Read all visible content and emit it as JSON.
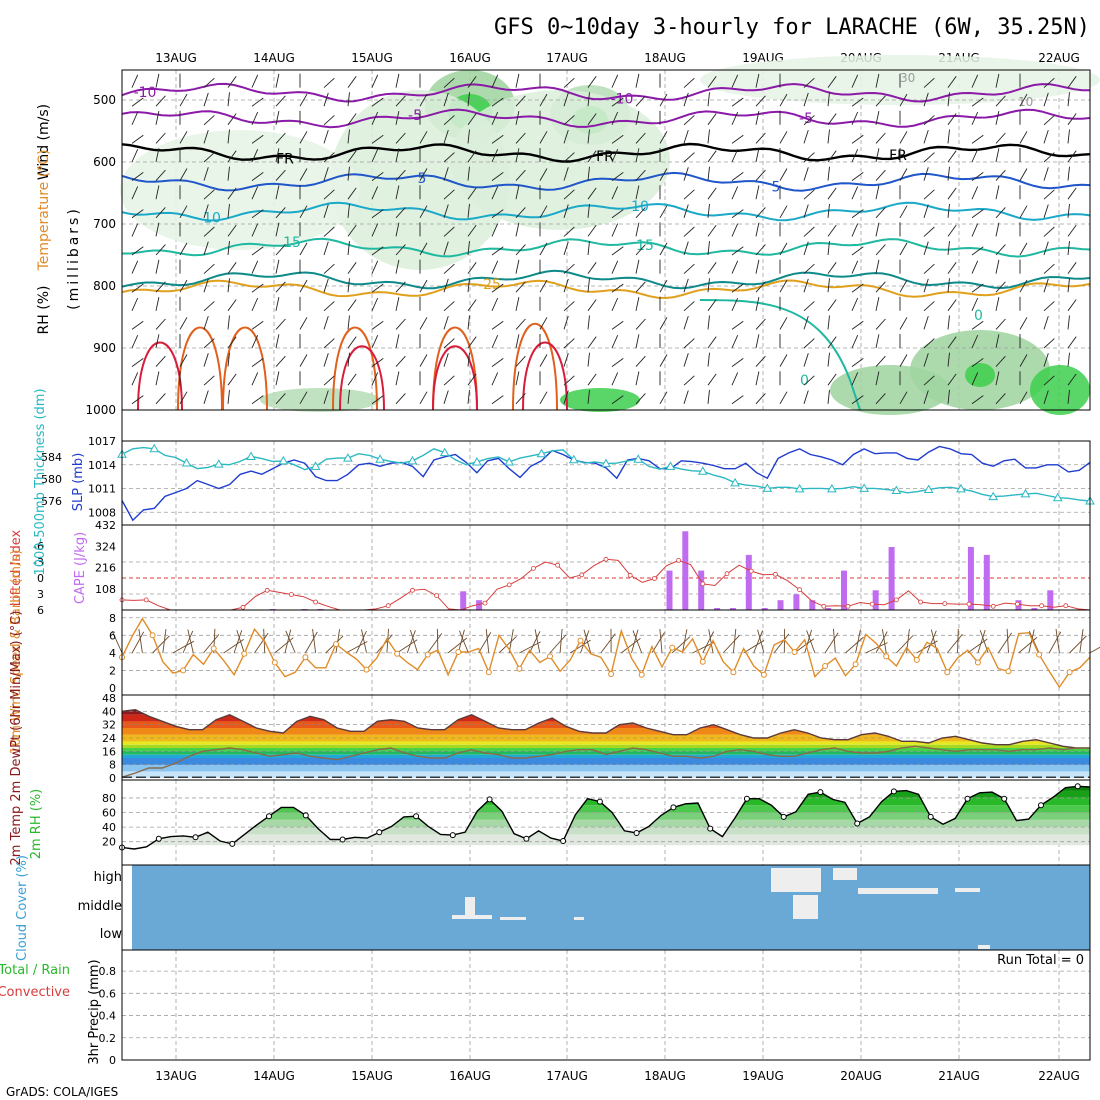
{
  "title": "GFS 0~10day 3-hourly for LARACHE (6W, 35.25N)",
  "footer": "GrADS: COLA/IGES",
  "colors": {
    "frame": "#000000",
    "grid": "#a0a0a0",
    "temperature_cold": "#8b1aa8",
    "temperature_mid": "#1f56c9",
    "temperature_cyan": "#1aa9c9",
    "temperature_teal": "#1fb8a0",
    "temperature_warm": "#e0a01c",
    "temperature_hot": "#e0601c",
    "temperature_red": "#d81c3c",
    "rh_green": "#3ccf4c",
    "slp": "#1f3ccf",
    "thickness": "#2bb8c2",
    "lifted_index": "#d83c3c",
    "cape": "#c06cf0",
    "wind": "#e08c28",
    "dewpoint": "#8a6a4a",
    "rh2m": "#2bb82b",
    "cloud_bg": "#6aa8d6",
    "cloud_fill": "#eeeeee"
  },
  "chart_data": {
    "dates": [
      "13AUG",
      "14AUG",
      "15AUG",
      "16AUG",
      "17AUG",
      "18AUG",
      "19AUG",
      "20AUG",
      "21AUG",
      "22AUG"
    ],
    "panels": [
      {
        "type": "contour",
        "name": "upper-air cross-section",
        "ylabels": [
          "Wind (m/s)",
          "Temperature (°C)",
          "RH (%)"
        ],
        "ylabel2": "(millibars)",
        "yticks": [
          "500",
          "600",
          "700",
          "800",
          "900",
          "1000"
        ],
        "contour_labels": [
          "-10",
          "-5",
          "FR",
          "5",
          "10",
          "15",
          "25",
          "0"
        ],
        "right_labels": [
          "30",
          "10"
        ]
      },
      {
        "type": "line",
        "name": "thickness-slp",
        "ylabel_left": "1000-500mb Thickness (dm)",
        "ylabel_right": "SLP (mb)",
        "yticks_left": [
          "584",
          "580",
          "576"
        ],
        "yticks_right": [
          "1017",
          "1014",
          "1011",
          "1008"
        ],
        "series": [
          {
            "name": "SLP (mb)",
            "values": [
              1009.5,
              1007,
              1008.3,
              1008.5,
              1010,
              1010.5,
              1011,
              1012,
              1011.5,
              1011,
              1011.5,
              1012.8,
              1013.2,
              1012.8,
              1013.5,
              1014.2,
              1014.6,
              1014.2,
              1012.5,
              1012,
              1012,
              1012.8,
              1014,
              1014.2,
              1013.8,
              1014.2,
              1014.3,
              1013.8,
              1012.5,
              1014.6,
              1015,
              1015.3,
              1014.3,
              1013,
              1014.5,
              1014.8,
              1013.5,
              1012.4,
              1013.8,
              1014.5,
              1015.8,
              1015.3,
              1014.6,
              1014.3,
              1014.2,
              1013.6,
              1012.3,
              1014.6,
              1014.8,
              1014.5,
              1013.5,
              1013.5,
              1014.5,
              1014.4,
              1014.2,
              1013.9,
              1013.5,
              1013.5,
              1014.2,
              1013,
              1012.3,
              1014.8,
              1015.5,
              1016,
              1015.3,
              1015,
              1014.6,
              1014,
              1015.3,
              1016,
              1015.4,
              1015.5,
              1015.5,
              1014.8,
              1014.6,
              1015.6,
              1016.3,
              1016,
              1015.4,
              1015.3,
              1014.2,
              1013.8,
              1014.5,
              1014.7,
              1013.6,
              1013.6,
              1014,
              1014,
              1013.1,
              1013.3,
              1014.3
            ]
          },
          {
            "name": "1000-500mb Thickness (dm)",
            "values": [
              584.5,
              585.5,
              585.7,
              585.5,
              584.3,
              583.9,
              582.9,
              581.9,
              582.1,
              582.7,
              582.6,
              583.2,
              584.1,
              583.7,
              583.2,
              583.3,
              582.6,
              581.7,
              582.3,
              583.6,
              583.8,
              583.8,
              584.6,
              584.3,
              583.6,
              583.2,
              582.9,
              583.3,
              584.3,
              585.5,
              584.8,
              583.5,
              582.6,
              583.1,
              583.7,
              584,
              583.1,
              583.8,
              584.2,
              584.6,
              585.1,
              585.3,
              583.5,
              582.9,
              583.1,
              582.8,
              582.9,
              583.3,
              583.6,
              582.3,
              581.8,
              582.3,
              581.8,
              581.5,
              581.4,
              580.7,
              580.2,
              579.3,
              578.9,
              578.7,
              578.3,
              578.5,
              578.5,
              578.2,
              578.3,
              578.3,
              578.2,
              578.3,
              578.6,
              578.3,
              578.3,
              578.1,
              577.9,
              577.5,
              577.7,
              578.1,
              578.4,
              578.5,
              578.2,
              577.8,
              577.2,
              576.8,
              576.9,
              577.1,
              577.3,
              577.4,
              577,
              576.6,
              576.5,
              576.2,
              576
            ]
          }
        ]
      },
      {
        "type": "line+bar",
        "name": "lifted-index-cape",
        "ylabel_left": "Lifted Index",
        "ylabel_right": "CAPE (J/kg)",
        "yticks_left": [
          "-6",
          "-3",
          "0",
          "3",
          "6"
        ],
        "yticks_right": [
          "432",
          "324",
          "216",
          "108"
        ],
        "series": [
          {
            "name": "Lifted Index",
            "values": [
              4.1,
              4.2,
              4.1,
              5.2,
              6.5,
              6.8,
              7,
              7,
              7,
              7,
              5.5,
              3.5,
              2.3,
              2.7,
              3.1,
              3.5,
              4.5,
              5.3,
              6.5,
              7.5,
              6.5,
              5.8,
              5.2,
              3.8,
              2.3,
              2.1,
              3.3,
              5.8,
              7.1,
              5.2,
              4.7,
              2.1,
              1.3,
              0.1,
              -1.8,
              -3,
              -2.4,
              0,
              -0.6,
              -2.3,
              -3.5,
              -3.3,
              -0.5,
              0.8,
              0.1,
              -2.3,
              -3.3,
              -2.5,
              1.1,
              1.4,
              -0.8,
              -2.4,
              -1.3,
              -0.6,
              -0.7,
              0.5,
              2.2,
              4.3,
              5.3,
              5.2,
              5.3,
              4.6,
              4.9,
              5,
              4.1,
              2.4,
              4.5,
              4.8,
              4.8,
              4.9,
              4.9,
              5,
              5.3,
              4.7,
              4.9,
              5.2,
              5.2,
              5.5,
              5.2,
              5.8,
              6.6
            ]
          },
          {
            "name": "CAPE (J/kg)",
            "values": [
              0,
              0,
              0,
              0,
              0,
              0,
              0,
              0,
              0,
              5,
              0,
              5,
              5,
              0,
              0,
              0,
              0,
              0,
              0,
              0,
              0,
              95,
              50,
              0,
              0,
              0,
              0,
              0,
              0,
              0,
              0,
              0,
              0,
              0,
              200,
              400,
              200,
              10,
              10,
              280,
              10,
              50,
              80,
              50,
              10,
              200,
              0,
              100,
              320,
              0,
              0,
              0,
              0,
              320,
              280,
              0,
              50,
              10,
              100,
              0,
              0
            ]
          }
        ],
        "reference_line": 0
      },
      {
        "type": "line",
        "name": "10m-wind",
        "ylabel": "10m Wind Speed & Barbs (m/s)",
        "yticks": [
          "8",
          "6",
          "4",
          "2",
          "0"
        ],
        "series": [
          {
            "name": "10m Wind Speed",
            "values": [
              3.5,
              5.9,
              7.9,
              6,
              3,
              1.7,
              2,
              3.8,
              2.7,
              4.5,
              3.1,
              1.5,
              3.9,
              6.7,
              5.3,
              2.9,
              1.3,
              1.8,
              3.5,
              2.3,
              2.3,
              5,
              4.1,
              3.3,
              2.1,
              3.4,
              5.6,
              3.9,
              2.9,
              2.1,
              3.8,
              4.3,
              1.5,
              4.1,
              4.1,
              4.5,
              1.8,
              6,
              4.4,
              2.2,
              4.3,
              2.9,
              3.6,
              1.9,
              3.2,
              5.4,
              3.9,
              3.5,
              1.6,
              6.5,
              3.4,
              1.5,
              4.7,
              2.4,
              4.6,
              4.1,
              5.6,
              3,
              5.4,
              3,
              1.8,
              4.5,
              2.5,
              1.5,
              4.9,
              5.5,
              4.1,
              5.5,
              1.3,
              2.5,
              3.4,
              1.4,
              2.7,
              6.1,
              5.1,
              3.6,
              2.5,
              4.6,
              3.2,
              5.2,
              4.5,
              1.8,
              3.4,
              4.3,
              2.9,
              4.6,
              2.2,
              1.9,
              6.2,
              6.3,
              3.8,
              1.9,
              0.1,
              1.8,
              2.3,
              3.5
            ]
          }
        ]
      },
      {
        "type": "area",
        "name": "2m-temp",
        "ylabel": "2m Temp 2m DewPt (6hr Min/Max) (°C)",
        "yticks": [
          "48",
          "40",
          "32",
          "24",
          "16",
          "8",
          "0"
        ],
        "series": [
          {
            "name": "2m Temp",
            "values": [
              40,
              41,
              37,
              34,
              31,
              29,
              29,
              35,
              38,
              34,
              30,
              28,
              27,
              34,
              37,
              35,
              30,
              28,
              28,
              34,
              35,
              34,
              30,
              29,
              29,
              35,
              38,
              34,
              30,
              29,
              29,
              33,
              36,
              31,
              28,
              27,
              27,
              32,
              33,
              30,
              28,
              26,
              26,
              30,
              32,
              29,
              26,
              24,
              24,
              27,
              29,
              27,
              24,
              23,
              23,
              26,
              27,
              25,
              22,
              22,
              21,
              24,
              25,
              23,
              21,
              20,
              20,
              22,
              23,
              21,
              19,
              18,
              18
            ]
          },
          {
            "name": "2m DewPt",
            "values": [
              0.5,
              3,
              6,
              6,
              9,
              13,
              16,
              17,
              18,
              17,
              15,
              13,
              14,
              15,
              13,
              12,
              11,
              13,
              15,
              17,
              18,
              15,
              13,
              12,
              12,
              15,
              17,
              15,
              14,
              12,
              12,
              13,
              14,
              16,
              17,
              17,
              14,
              16,
              18,
              17,
              15,
              13,
              13,
              12,
              13,
              16,
              17,
              16,
              14,
              13,
              13,
              15,
              17,
              18,
              16,
              15,
              15,
              16,
              18,
              19,
              18,
              17,
              16,
              17,
              17,
              17,
              16,
              17,
              17,
              18,
              17,
              18,
              18
            ]
          }
        ]
      },
      {
        "type": "area",
        "name": "2m-rh",
        "ylabel": "2m RH (%)",
        "yticks": [
          "80",
          "60",
          "40",
          "20"
        ],
        "series": [
          {
            "name": "2m RH",
            "values": [
              12,
              10,
              13,
              24,
              27,
              28,
              26,
              33,
              21,
              17,
              30,
              43,
              55,
              67,
              67,
              56,
              38,
              23,
              23,
              26,
              25,
              33,
              41,
              54,
              55,
              41,
              30,
              29,
              33,
              62,
              78,
              62,
              31,
              24,
              35,
              25,
              21,
              57,
              79,
              75,
              60,
              35,
              32,
              41,
              56,
              67,
              72,
              73,
              38,
              27,
              52,
              79,
              79,
              70,
              54,
              61,
              85,
              88,
              78,
              74,
              45,
              54,
              75,
              89,
              90,
              85,
              54,
              44,
              52,
              79,
              87,
              88,
              79,
              49,
              51,
              70,
              81,
              94,
              96,
              95
            ]
          }
        ]
      },
      {
        "type": "area",
        "name": "cloud-cover",
        "ylabel": "Cloud Cover (%)",
        "yticks": [
          "high",
          "middle",
          "low"
        ]
      },
      {
        "type": "bar",
        "name": "3hr-precip",
        "ylabel_a": "Total / Rain",
        "ylabel_b": "Convective",
        "ylabel_c": "3hr Precip (mm)",
        "yticks": [
          "0.8",
          "0.6",
          "0.4",
          "0.2",
          "0"
        ],
        "run_total": "Run Total = 0",
        "values": []
      }
    ]
  }
}
